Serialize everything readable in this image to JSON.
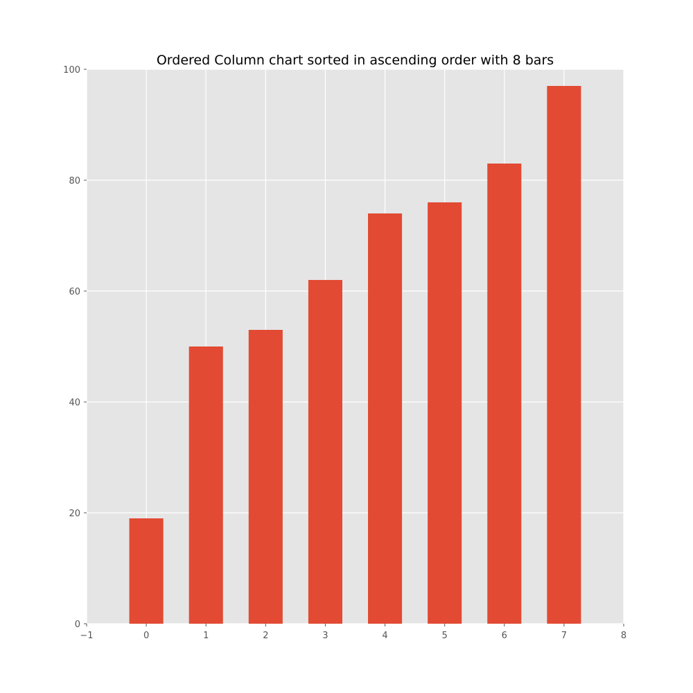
{
  "chart_data": {
    "type": "bar",
    "title": "Ordered Column chart sorted in ascending order with 8 bars",
    "xlabel": "",
    "ylabel": "",
    "x": [
      0,
      1,
      2,
      3,
      4,
      5,
      6,
      7
    ],
    "values": [
      19,
      50,
      53,
      62,
      74,
      76,
      83,
      97
    ],
    "xlim": [
      -1,
      8
    ],
    "ylim": [
      0,
      100
    ],
    "xticks": [
      "−1",
      "0",
      "1",
      "2",
      "3",
      "4",
      "5",
      "6",
      "7",
      "8"
    ],
    "yticks": [
      "0",
      "20",
      "40",
      "60",
      "80",
      "100"
    ],
    "grid": true,
    "legend": "none",
    "colors": {
      "bar": "#E24A33",
      "plot_background": "#E5E5E5",
      "grid": "#FFFFFF",
      "tick_text": "#555555",
      "title_text": "#000000"
    }
  }
}
